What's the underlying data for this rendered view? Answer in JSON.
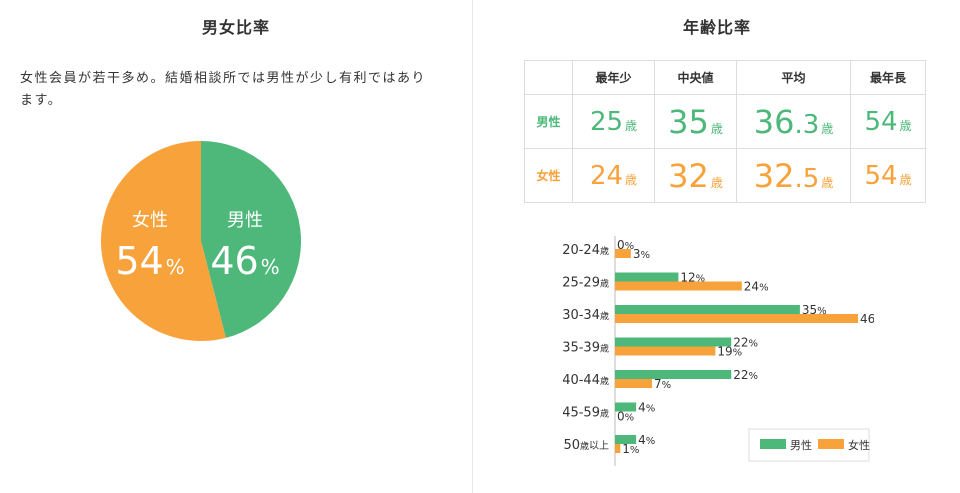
{
  "left": {
    "title": "男女比率",
    "description": "女性会員が若干多め。結婚相談所では男性が少し有利ではあります。"
  },
  "right": {
    "title": "年齢比率",
    "table": {
      "headers": [
        "",
        "最年少",
        "中央値",
        "平均",
        "最年長"
      ],
      "unit": "歳",
      "rows": [
        {
          "label": "男性",
          "youngest": "25",
          "median": "35",
          "average_int": "36",
          "average_dec": ".3",
          "oldest": "54"
        },
        {
          "label": "女性",
          "youngest": "24",
          "median": "32",
          "average_int": "32",
          "average_dec": ".5",
          "oldest": "54"
        }
      ]
    }
  },
  "colors": {
    "male": "#4db879",
    "female": "#f7a23b"
  },
  "chart_data": [
    {
      "type": "pie",
      "slices": [
        {
          "label": "男性",
          "value": 46,
          "display": "46",
          "unit": "%"
        },
        {
          "label": "女性",
          "value": 54,
          "display": "54",
          "unit": "%"
        }
      ]
    },
    {
      "type": "bar",
      "orientation": "horizontal",
      "categories": [
        {
          "range": "20-24",
          "unit": "歳",
          "suffix": ""
        },
        {
          "range": "25-29",
          "unit": "歳",
          "suffix": ""
        },
        {
          "range": "30-34",
          "unit": "歳",
          "suffix": ""
        },
        {
          "range": "35-39",
          "unit": "歳",
          "suffix": ""
        },
        {
          "range": "40-44",
          "unit": "歳",
          "suffix": ""
        },
        {
          "range": "45-59",
          "unit": "歳",
          "suffix": ""
        },
        {
          "range": "50",
          "unit": "歳",
          "suffix": "以上"
        }
      ],
      "series": [
        {
          "name": "男性",
          "values": [
            0,
            12,
            35,
            22,
            22,
            4,
            4
          ]
        },
        {
          "name": "女性",
          "values": [
            3,
            24,
            46,
            19,
            7,
            0,
            1
          ]
        }
      ],
      "value_unit": "%",
      "xlim": [
        0,
        50
      ],
      "legend": "bottom-right",
      "grid": false
    }
  ]
}
